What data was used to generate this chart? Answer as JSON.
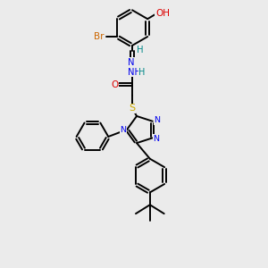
{
  "background_color": "#ebebeb",
  "colors": {
    "C": "#000000",
    "N": "#0000ee",
    "O": "#dd0000",
    "S": "#ccaa00",
    "Br": "#cc6600",
    "H": "#008888"
  },
  "figsize": [
    3.0,
    3.0
  ],
  "dpi": 100
}
